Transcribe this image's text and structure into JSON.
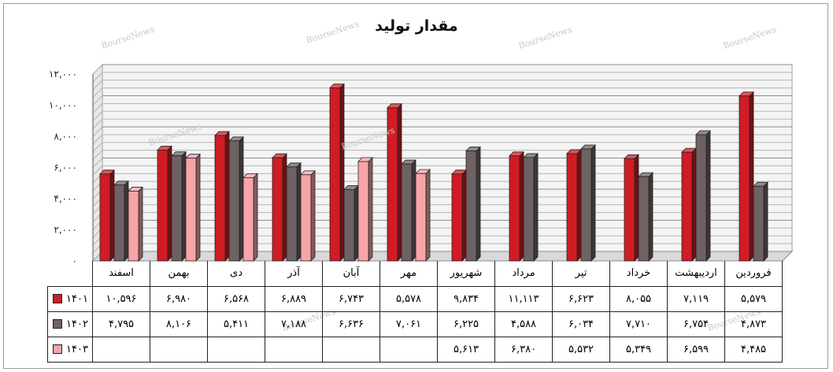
{
  "title": "مقدار تولید",
  "watermark": "BourseNews",
  "chart_data": {
    "type": "bar",
    "title": "مقدار تولید",
    "categories": [
      "فروردین",
      "اردیبهشت",
      "خرداد",
      "تیر",
      "مرداد",
      "شهریور",
      "مهر",
      "آبان",
      "آذر",
      "دی",
      "بهمن",
      "اسفند"
    ],
    "ylim": [
      0,
      12000
    ],
    "yticks": [
      0,
      2000,
      4000,
      6000,
      8000,
      10000,
      12000
    ],
    "ytick_labels": [
      "۰",
      "۲,۰۰۰",
      "۴,۰۰۰",
      "۶,۰۰۰",
      "۸,۰۰۰",
      "۱۰,۰۰۰",
      "۱۲,۰۰۰"
    ],
    "grid": true,
    "legend": "table-bottom",
    "series": [
      {
        "name": "۱۴۰۱",
        "color": "#d01c24",
        "values": [
          5579,
          7119,
          8055,
          6623,
          11113,
          9834,
          5578,
          6743,
          6889,
          6568,
          6980,
          10596
        ],
        "labels": [
          "۵,۵۷۹",
          "۷,۱۱۹",
          "۸,۰۵۵",
          "۶,۶۲۳",
          "۱۱,۱۱۳",
          "۹,۸۳۴",
          "۵,۵۷۸",
          "۶,۷۴۳",
          "۶,۸۸۹",
          "۶,۵۶۸",
          "۶,۹۸۰",
          "۱۰,۵۹۶"
        ]
      },
      {
        "name": "۱۴۰۲",
        "color": "#6e6262",
        "values": [
          4873,
          6754,
          7710,
          6034,
          4588,
          6225,
          7061,
          6636,
          7188,
          5411,
          8106,
          4795
        ],
        "labels": [
          "۴,۸۷۳",
          "۶,۷۵۴",
          "۷,۷۱۰",
          "۶,۰۳۴",
          "۴,۵۸۸",
          "۶,۲۲۵",
          "۷,۰۶۱",
          "۶,۶۳۶",
          "۷,۱۸۸",
          "۵,۴۱۱",
          "۸,۱۰۶",
          "۴,۷۹۵"
        ]
      },
      {
        "name": "۱۴۰۳",
        "color": "#f7a4a8",
        "values": [
          4485,
          6599,
          5349,
          5532,
          6380,
          5613,
          null,
          null,
          null,
          null,
          null,
          null
        ],
        "labels": [
          "۴,۴۸۵",
          "۶,۵۹۹",
          "۵,۳۴۹",
          "۵,۵۳۲",
          "۶,۳۸۰",
          "۵,۶۱۳",
          "",
          "",
          "",
          "",
          "",
          ""
        ]
      }
    ]
  }
}
